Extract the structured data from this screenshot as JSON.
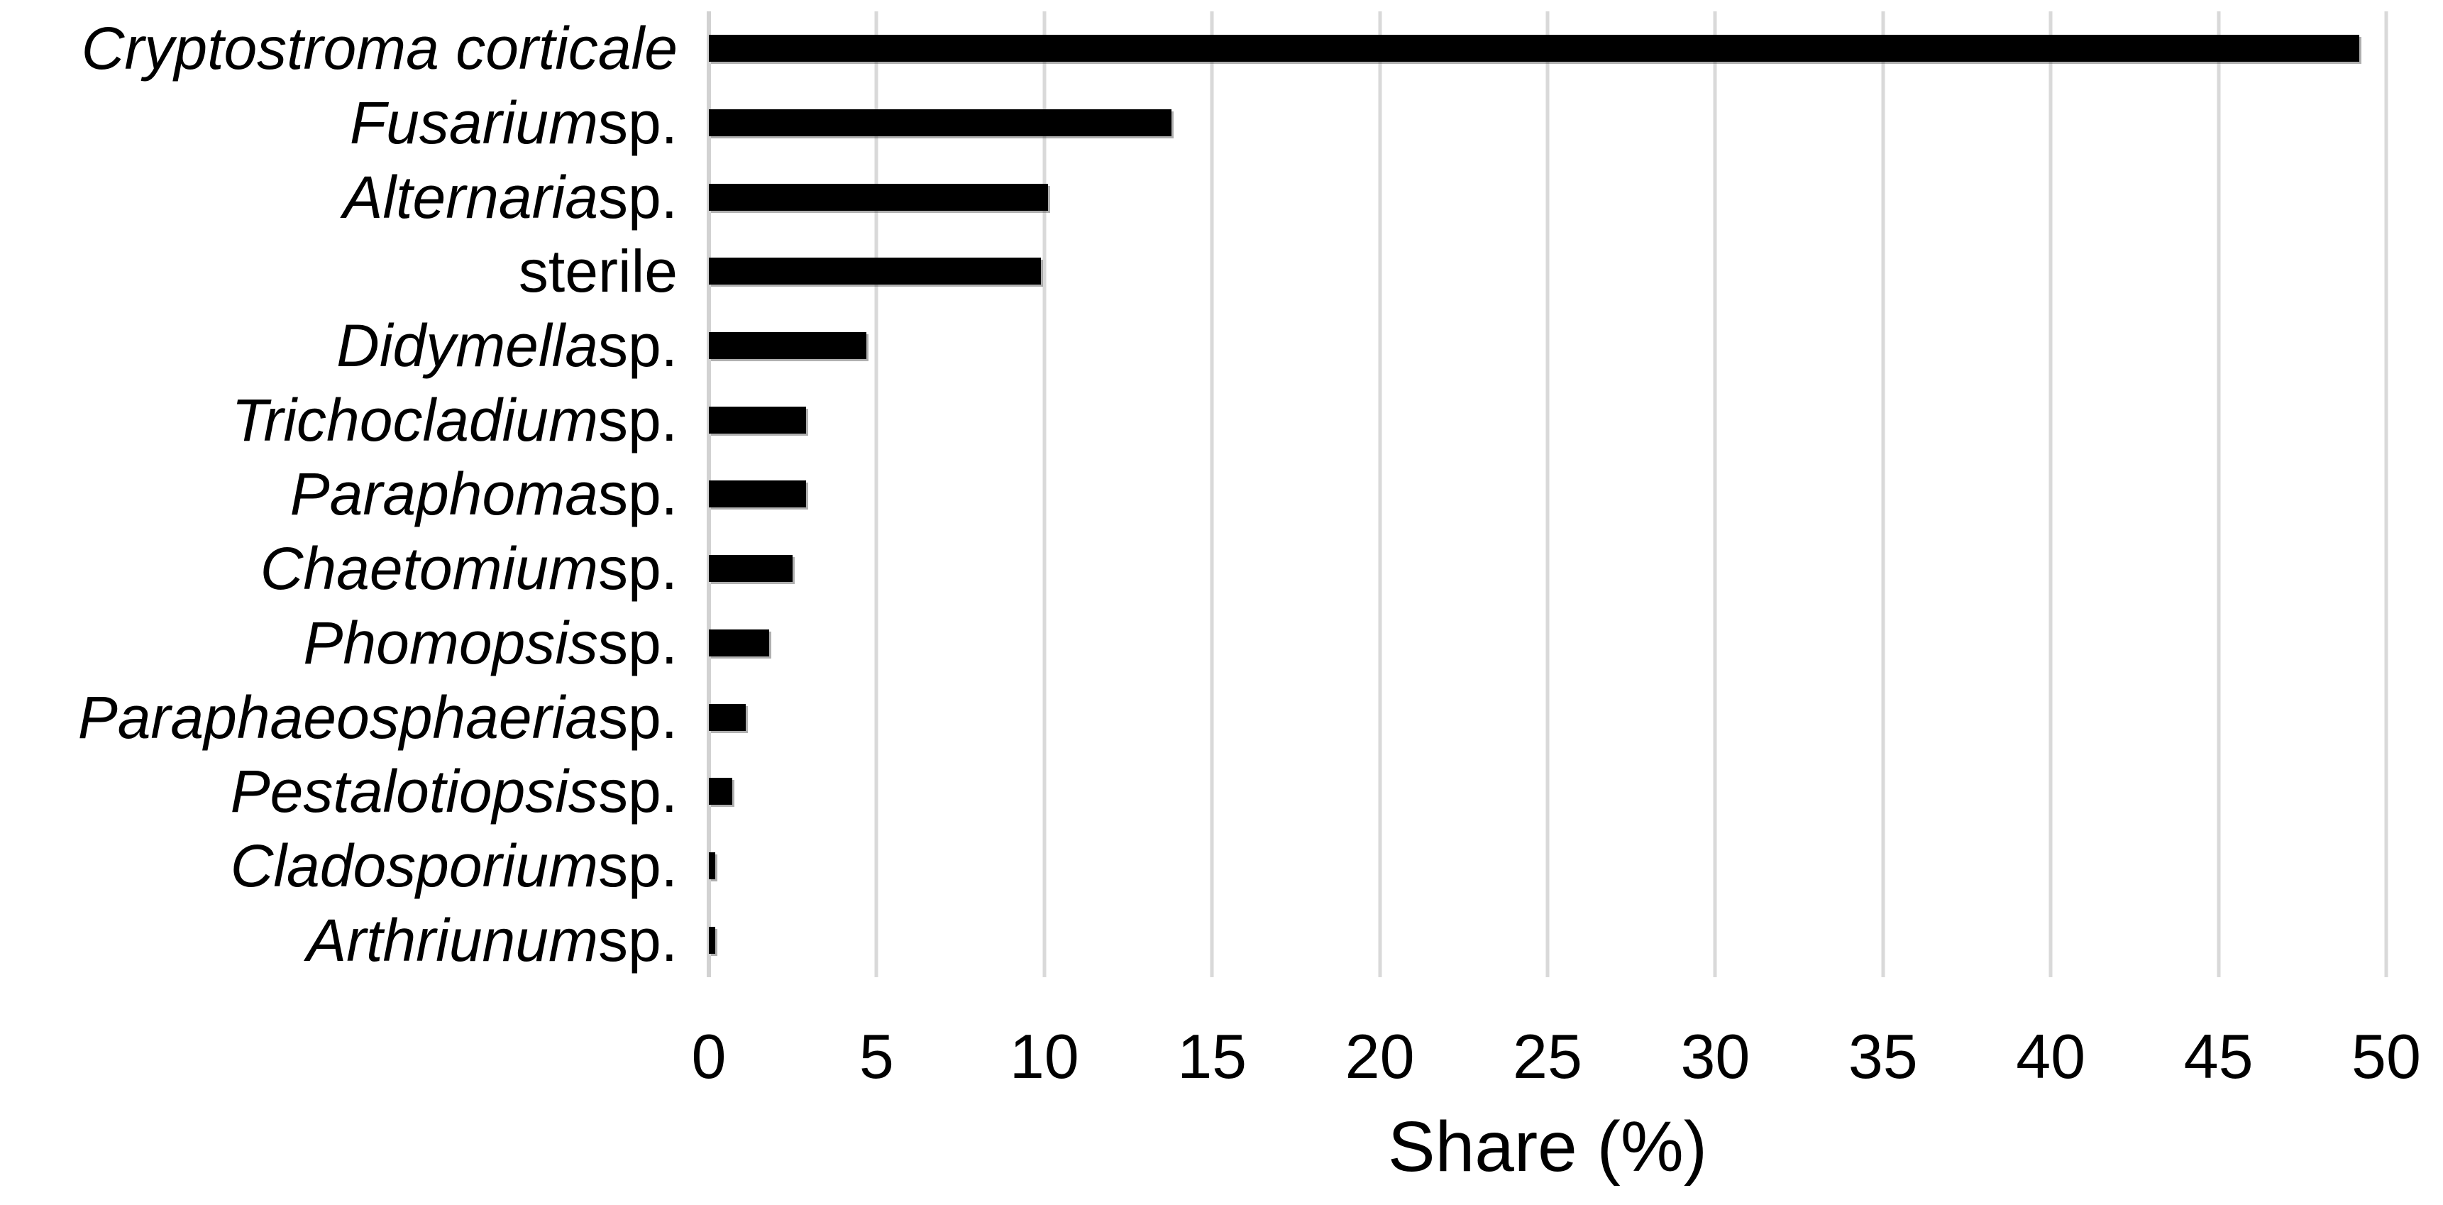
{
  "chart_data": {
    "type": "bar",
    "orientation": "horizontal",
    "title": "",
    "xlabel": "Share (%)",
    "ylabel": "",
    "xlim": [
      0,
      50
    ],
    "xticks": [
      0,
      5,
      10,
      15,
      20,
      25,
      30,
      35,
      40,
      45,
      50
    ],
    "grid": "vertical gridlines at every x tick",
    "legend": "none",
    "bar_color": "#000000",
    "gridline_color": "#d9d9d9",
    "background_color": "#ffffff",
    "categories": [
      "Cryptostroma corticale",
      "Fusarium sp.",
      "Alternaria sp.",
      "sterile",
      "Didymella sp.",
      "Trichocladium sp.",
      "Paraphoma sp.",
      "Chaetomium sp.",
      "Phomopsis sp.",
      "Paraphaeosphaeria sp.",
      "Pestalotiopsis sp.",
      "Cladosporium sp.",
      "Arthriunum sp."
    ],
    "categories_rich": [
      {
        "italic": "Cryptostroma corticale",
        "regular": ""
      },
      {
        "italic": "Fusarium",
        "regular": " sp."
      },
      {
        "italic": "Alternaria",
        "regular": " sp."
      },
      {
        "italic": "",
        "regular": "sterile"
      },
      {
        "italic": "Didymella",
        "regular": " sp."
      },
      {
        "italic": "Trichocladium",
        "regular": " sp."
      },
      {
        "italic": "Paraphoma",
        "regular": " sp."
      },
      {
        "italic": "Chaetomium",
        "regular": " sp."
      },
      {
        "italic": "Phomopsis",
        "regular": " sp."
      },
      {
        "italic": "Paraphaeosphaeria",
        "regular": " sp."
      },
      {
        "italic": "Pestalotiopsis",
        "regular": " sp."
      },
      {
        "italic": "Cladosporium",
        "regular": " sp."
      },
      {
        "italic": "Arthriunum",
        "regular": " sp."
      }
    ],
    "values": [
      49.2,
      13.8,
      10.1,
      9.9,
      4.7,
      2.9,
      2.9,
      2.5,
      1.8,
      1.1,
      0.7,
      0.2,
      0.2
    ]
  }
}
